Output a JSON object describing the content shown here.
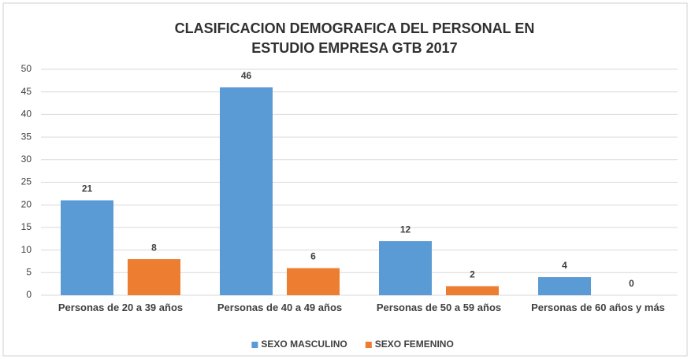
{
  "chart_data": {
    "type": "bar",
    "title": [
      "CLASIFICACION DEMOGRAFICA DEL PERSONAL EN",
      "ESTUDIO EMPRESA GTB 2017"
    ],
    "categories": [
      "Personas de 20 a 39 años",
      "Personas de 40 a 49 años",
      "Personas de 50 a 59 años",
      "Personas de 60 años y más"
    ],
    "series": [
      {
        "name": "SEXO MASCULINO",
        "color": "#5b9bd5",
        "values": [
          21,
          46,
          12,
          4
        ]
      },
      {
        "name": "SEXO FEMENINO",
        "color": "#ed7d31",
        "values": [
          8,
          6,
          2,
          0
        ]
      }
    ],
    "ylim": [
      0,
      50
    ],
    "yticks": [
      0,
      5,
      10,
      15,
      20,
      25,
      30,
      35,
      40,
      45,
      50
    ],
    "grid": true,
    "legend": "bottom"
  }
}
